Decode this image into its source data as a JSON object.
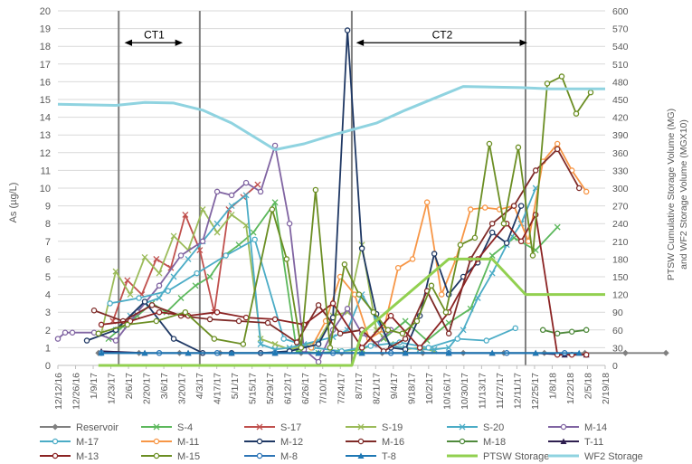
{
  "chart_data": {
    "type": "line",
    "title": "",
    "ylabel": "As (µg/L)",
    "y2label_line1": "PTSW Cumulative Storage Volume (MG)",
    "y2label_line2": "and WF2 Storage Volume (MGX10)",
    "ylim": [
      0,
      20
    ],
    "y2lim": [
      0,
      600
    ],
    "y_ticks": [
      "0",
      "1",
      "2",
      "3",
      "4",
      "5",
      "6",
      "7",
      "8",
      "9",
      "10",
      "11",
      "12",
      "13",
      "14",
      "15",
      "16",
      "17",
      "18",
      "19",
      "20"
    ],
    "y2_ticks": [
      "0",
      "30",
      "60",
      "90",
      "120",
      "150",
      "180",
      "210",
      "240",
      "270",
      "300",
      "330",
      "360",
      "390",
      "420",
      "450",
      "480",
      "510",
      "540",
      "570",
      "600"
    ],
    "x_ticks": [
      "12/12/16",
      "12/26/16",
      "1/9/17",
      "1/23/17",
      "2/6/17",
      "2/20/17",
      "3/6/17",
      "3/20/17",
      "4/3/17",
      "4/17/17",
      "5/1/17",
      "5/15/17",
      "5/29/17",
      "6/12/17",
      "6/26/17",
      "7/10/17",
      "7/24/17",
      "8/7/17",
      "8/21/17",
      "9/4/17",
      "9/18/17",
      "10/2/17",
      "10/16/17",
      "10/30/17",
      "11/13/17",
      "11/27/17",
      "12/11/17",
      "12/25/17",
      "1/8/18",
      "1/22/18",
      "2/5/18",
      "2/19/18"
    ],
    "annotations": [
      {
        "text": "CT1",
        "from": 49,
        "to": 84
      },
      {
        "text": "CT2",
        "from": 209,
        "to": 322
      }
    ],
    "vertical_lines": [
      42,
      98,
      203,
      323
    ],
    "series": [
      {
        "name": "Reservoir",
        "color": "#808080",
        "marker": "diamond",
        "axis": "left",
        "x": [
          28,
          56,
          84,
          112,
          140,
          168,
          196,
          224,
          252,
          280,
          308,
          336,
          364,
          392,
          420
        ],
        "y": [
          0.7,
          0.7,
          0.7,
          0.7,
          0.7,
          0.7,
          0.7,
          0.7,
          0.7,
          0.7,
          0.7,
          0.7,
          0.7,
          0.7,
          0.7
        ]
      },
      {
        "name": "S-4",
        "color": "#5cb85c",
        "marker": "x",
        "axis": "left",
        "x": [
          35,
          45,
          55,
          65,
          75,
          85,
          95,
          105,
          115,
          125,
          135,
          150,
          165,
          180,
          195,
          210,
          225,
          240,
          255,
          270,
          285,
          300,
          315,
          330,
          345
        ],
        "y": [
          1.5,
          2.2,
          2.8,
          3.5,
          3.0,
          3.8,
          4.5,
          5.0,
          6.2,
          6.8,
          7.5,
          9.2,
          0.8,
          0.7,
          0.8,
          0.9,
          1.5,
          2.5,
          1.4,
          2.4,
          3.2,
          6.2,
          7.2,
          6.5,
          7.8
        ]
      },
      {
        "name": "S-17",
        "color": "#c0504d",
        "marker": "x",
        "axis": "left",
        "x": [
          38,
          48,
          58,
          68,
          78,
          88,
          98,
          108,
          118,
          128,
          138
        ],
        "y": [
          2.5,
          4.8,
          4.0,
          6.0,
          5.5,
          8.5,
          6.5,
          3.0,
          8.8,
          9.5,
          10.2
        ]
      },
      {
        "name": "S-19",
        "color": "#9bbb59",
        "marker": "x",
        "axis": "left",
        "x": [
          30,
          40,
          50,
          60,
          70,
          80,
          90,
          100,
          110,
          120,
          130,
          140,
          150,
          160,
          170,
          180,
          190,
          200,
          210,
          220,
          230,
          240,
          250,
          260
        ],
        "y": [
          1.8,
          5.3,
          4.0,
          6.1,
          5.2,
          7.3,
          6.5,
          8.8,
          7.5,
          8.5,
          7.9,
          1.5,
          1.2,
          0.9,
          1.1,
          1.4,
          2.8,
          3.0,
          6.8,
          2.0,
          1.2,
          0.9,
          1.0,
          0.8
        ]
      },
      {
        "name": "S-20",
        "color": "#4bacc6",
        "marker": "x",
        "axis": "left",
        "x": [
          40,
          50,
          60,
          70,
          80,
          90,
          100,
          110,
          120,
          130,
          140,
          150,
          160,
          170,
          180,
          190,
          200,
          210,
          220,
          230,
          240,
          250,
          260,
          270,
          280,
          290,
          300,
          310,
          320,
          330
        ],
        "y": [
          2.0,
          2.8,
          3.5,
          3.8,
          5.0,
          6.0,
          7.0,
          8.0,
          9.0,
          9.6,
          1.2,
          0.9,
          1.0,
          1.2,
          1.4,
          1.6,
          2.0,
          4.0,
          2.6,
          1.1,
          1.0,
          0.9,
          0.9,
          1.0,
          2.0,
          3.8,
          5.2,
          6.8,
          8.0,
          10.0
        ]
      },
      {
        "name": "M-14",
        "color": "#8064a2",
        "marker": "circle",
        "axis": "left",
        "x": [
          0,
          5,
          10,
          25,
          40,
          55,
          70,
          85,
          100,
          110,
          120,
          130,
          140,
          150,
          160,
          170,
          180,
          190,
          200,
          210,
          220,
          230
        ],
        "y": [
          1.5,
          1.85,
          1.85,
          1.85,
          1.4,
          3.0,
          4.5,
          6.2,
          7.0,
          9.8,
          9.6,
          10.3,
          9.8,
          12.4,
          8.0,
          0.9,
          0.2,
          2.0,
          3.2,
          1.8,
          1.2,
          2.0
        ]
      },
      {
        "name": "M-17",
        "color": "#4bacc6",
        "marker": "circle",
        "axis": "left",
        "x": [
          36,
          56,
          76,
          96,
          116,
          136,
          156,
          176,
          196,
          216,
          236,
          256,
          276,
          296,
          316
        ],
        "y": [
          3.5,
          3.8,
          4.2,
          5.2,
          6.2,
          7.1,
          1.5,
          1.0,
          0.8,
          1.1,
          1.3,
          1.0,
          1.5,
          1.4,
          2.1
        ]
      },
      {
        "name": "M-11",
        "color": "#f79646",
        "marker": "circle",
        "axis": "left",
        "x": [
          175,
          185,
          195,
          205,
          215,
          225,
          235,
          245,
          255,
          265,
          275,
          285,
          295,
          305,
          315,
          325,
          335,
          345,
          355,
          365
        ],
        "y": [
          1.0,
          2.5,
          5.0,
          4.0,
          1.5,
          2.0,
          5.5,
          6.0,
          9.2,
          4.0,
          6.0,
          8.8,
          8.9,
          8.8,
          9.0,
          7.0,
          11.5,
          12.5,
          11.0,
          9.8
        ]
      },
      {
        "name": "M-12",
        "color": "#1f3864",
        "marker": "circle",
        "axis": "left",
        "x": [
          20,
          40,
          60,
          80,
          100,
          120,
          140,
          160,
          180,
          190,
          200,
          210,
          220,
          230,
          240,
          250,
          260,
          270,
          280,
          290,
          300,
          310,
          320
        ],
        "y": [
          1.4,
          2.0,
          3.6,
          1.5,
          0.7,
          0.7,
          0.7,
          0.8,
          1.2,
          2.7,
          18.9,
          6.6,
          2.9,
          1.0,
          0.9,
          2.8,
          6.3,
          4.0,
          5.0,
          5.8,
          7.5,
          6.9,
          9.0
        ]
      },
      {
        "name": "M-16",
        "color": "#7f2b28",
        "marker": "circle",
        "axis": "left",
        "x": [
          25,
          45,
          65,
          85,
          105,
          125,
          145,
          165,
          180,
          195,
          210,
          225,
          240,
          255,
          270,
          285,
          300,
          315,
          330,
          345,
          360
        ],
        "y": [
          3.1,
          2.5,
          3.4,
          2.8,
          2.6,
          2.5,
          2.4,
          1.3,
          3.4,
          1.8,
          2.0,
          0.8,
          1.5,
          4.2,
          1.8,
          6.0,
          8.0,
          9.0,
          11.0,
          12.2,
          10.0
        ]
      },
      {
        "name": "M-18",
        "color": "#4f8a3c",
        "marker": "circle",
        "axis": "left",
        "x": [
          335,
          345,
          355,
          365
        ],
        "y": [
          2.0,
          1.8,
          1.9,
          2.0
        ]
      },
      {
        "name": "T-11",
        "color": "#2e1f4f",
        "marker": "triangle",
        "axis": "left",
        "x": [
          30,
          60,
          90,
          120,
          150,
          180,
          210,
          240,
          270,
          300,
          330,
          350,
          365
        ],
        "y": [
          0.8,
          0.7,
          0.7,
          0.7,
          0.7,
          0.7,
          0.7,
          0.7,
          0.7,
          0.7,
          0.7,
          0.6,
          0.6
        ]
      },
      {
        "name": "M-13",
        "color": "#8b2323",
        "marker": "circle",
        "axis": "left",
        "x": [
          30,
          50,
          70,
          90,
          110,
          130,
          150,
          170,
          190,
          210,
          230,
          250,
          270,
          290,
          310,
          320,
          330,
          345,
          355,
          365
        ],
        "y": [
          2.3,
          2.5,
          3.0,
          2.8,
          3.0,
          2.7,
          2.6,
          2.3,
          3.5,
          1.0,
          2.8,
          1.0,
          3.0,
          6.0,
          8.0,
          7.0,
          8.5,
          0.6,
          0.6,
          0.6
        ]
      },
      {
        "name": "M-15",
        "color": "#6b8e23",
        "marker": "circle",
        "axis": "left",
        "x": [
          28,
          48,
          68,
          88,
          108,
          128,
          148,
          158,
          168,
          178,
          188,
          198,
          208,
          218,
          228,
          238,
          248,
          258,
          268,
          278,
          288,
          298,
          308,
          318,
          328,
          338,
          348,
          358,
          368
        ],
        "y": [
          1.8,
          2.3,
          2.5,
          3.0,
          1.5,
          1.2,
          8.8,
          6.0,
          1.0,
          9.9,
          1.0,
          5.7,
          4.0,
          3.0,
          2.0,
          1.8,
          2.5,
          4.5,
          3.0,
          6.8,
          7.2,
          12.5,
          8.0,
          12.3,
          6.2,
          15.9,
          16.3,
          14.2,
          15.4
        ]
      },
      {
        "name": "M-8",
        "color": "#2e75b6",
        "marker": "circle",
        "axis": "left",
        "x": [
          30,
          70,
          110,
          150,
          190,
          230,
          270,
          310,
          350
        ],
        "y": [
          0.7,
          0.7,
          0.7,
          0.7,
          0.7,
          0.7,
          0.7,
          0.7,
          0.7
        ]
      },
      {
        "name": "T-8",
        "color": "#1f78b4",
        "marker": "triangle",
        "axis": "left",
        "x": [
          30,
          60,
          90,
          120,
          150,
          180,
          210,
          240,
          270,
          300,
          330,
          360
        ],
        "y": [
          0.7,
          0.7,
          0.7,
          0.7,
          0.7,
          0.7,
          0.7,
          0.7,
          0.7,
          0.7,
          0.7,
          0.7
        ]
      },
      {
        "name": "PTSW Storage",
        "color": "#92d050",
        "marker": "none",
        "axis": "right",
        "x": [
          28,
          42,
          98,
          203,
          210,
          270,
          300,
          323,
          378
        ],
        "y": [
          0,
          0,
          0,
          0,
          55,
          180,
          180,
          120,
          120
        ]
      },
      {
        "name": "WF2 Storage",
        "color": "#8fd3e0",
        "marker": "none",
        "axis": "right",
        "x": [
          0,
          40,
          60,
          80,
          100,
          120,
          150,
          170,
          190,
          220,
          240,
          260,
          280,
          320,
          340,
          378
        ],
        "y": [
          442,
          440,
          445,
          444,
          432,
          410,
          365,
          375,
          390,
          410,
          432,
          452,
          472,
          470,
          468,
          468
        ]
      }
    ]
  }
}
